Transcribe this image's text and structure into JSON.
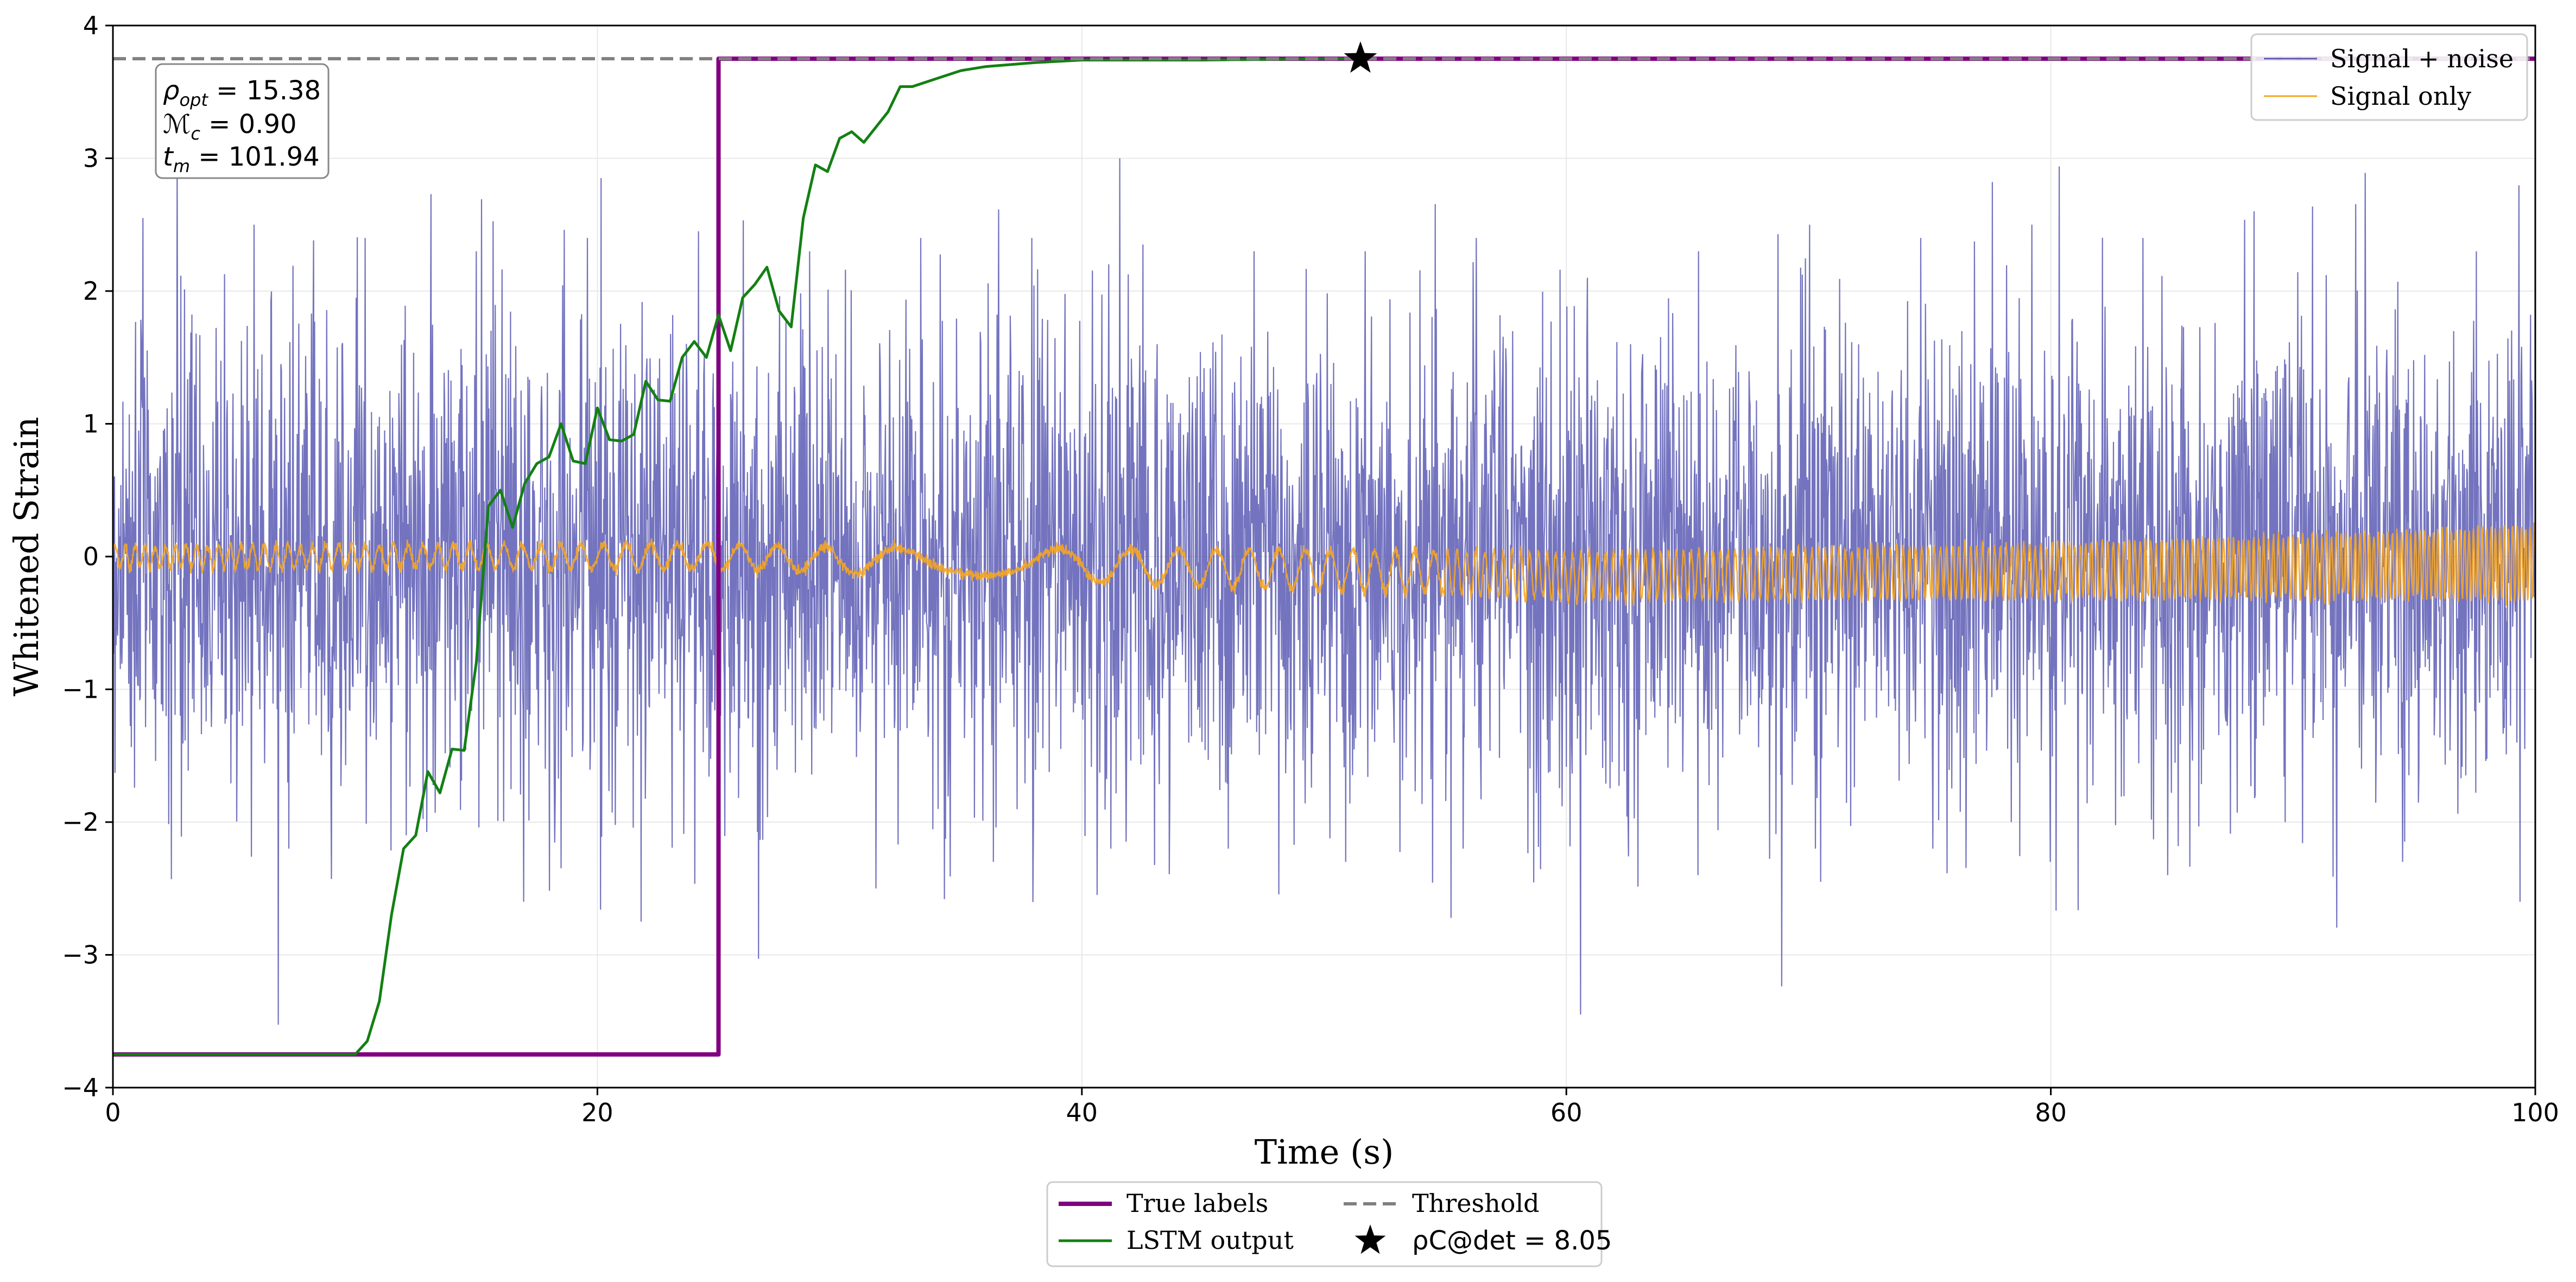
{
  "chart_data": {
    "type": "line",
    "xlabel": "Time (s)",
    "ylabel": "Whitened Strain",
    "xlim": [
      0,
      100
    ],
    "ylim": [
      -4,
      4
    ],
    "x_ticks": [
      "0",
      "20",
      "40",
      "60",
      "80",
      "100"
    ],
    "x_tick_values": [
      0,
      20,
      40,
      60,
      80,
      100
    ],
    "y_ticks": [
      "−4",
      "−3",
      "−2",
      "−1",
      "0",
      "1",
      "2",
      "3",
      "4"
    ],
    "y_tick_values": [
      -4,
      -3,
      -2,
      -1,
      0,
      1,
      2,
      3,
      4
    ],
    "grid": true,
    "threshold": 3.75,
    "series": [
      {
        "name": "Signal + noise",
        "color": "#5a5ab4",
        "style": "noise",
        "x_range": [
          0,
          100
        ],
        "std": 0.9,
        "envelope_start": [
          [
            -2.43,
            2.55
          ],
          [
            -2.2,
            2.5
          ],
          [
            -2.1,
            2.4
          ],
          [
            -2.6,
            2.3
          ],
          [
            -2.75,
            2.4
          ],
          [
            -3.03,
            2.45
          ],
          [
            -2.5,
            2.3
          ],
          [
            -2.3,
            2.4
          ],
          [
            -2.2,
            2.35
          ],
          [
            -2.2,
            2.3
          ],
          [
            -2.3,
            2.3
          ],
          [
            -2.2,
            2.4
          ],
          [
            -3.45,
            2.1
          ],
          [
            -2.4,
            2.3
          ],
          [
            -2.2,
            2.5
          ],
          [
            -2.2,
            2.4
          ],
          [
            -2.3,
            2.5
          ],
          [
            -2.4,
            2.4
          ],
          [
            -2.0,
            2.6
          ],
          [
            -2.3,
            2.89
          ],
          [
            -2.6,
            2.3
          ]
        ]
      },
      {
        "name": "Signal only",
        "color": "#f5a623",
        "style": "chirp",
        "x_range": [
          0,
          100
        ],
        "amplitude": [
          [
            0,
            0.08
          ],
          [
            30,
            0.1
          ],
          [
            50,
            0.15
          ],
          [
            60,
            0.18
          ],
          [
            80,
            0.2
          ],
          [
            95,
            0.25
          ],
          [
            100,
            0.28
          ]
        ],
        "offset": [
          [
            0,
            0.0
          ],
          [
            25,
            0.0
          ],
          [
            35,
            -0.05
          ],
          [
            55,
            -0.12
          ],
          [
            60,
            -0.15
          ],
          [
            75,
            -0.12
          ],
          [
            100,
            -0.05
          ]
        ]
      },
      {
        "name": "True labels",
        "color": "#800080",
        "style": "step",
        "points": [
          [
            0,
            -3.75
          ],
          [
            25,
            -3.75
          ],
          [
            25,
            3.75
          ],
          [
            100,
            3.75
          ]
        ]
      },
      {
        "name": "LSTM output",
        "color": "#138013",
        "style": "line",
        "points": [
          [
            0,
            -3.75
          ],
          [
            10,
            -3.75
          ],
          [
            10.5,
            -3.65
          ],
          [
            11,
            -3.35
          ],
          [
            11.5,
            -2.7
          ],
          [
            12,
            -2.2
          ],
          [
            12.5,
            -2.1
          ],
          [
            13,
            -1.62
          ],
          [
            13.5,
            -1.78
          ],
          [
            14,
            -1.45
          ],
          [
            14.5,
            -1.46
          ],
          [
            15,
            -0.8
          ],
          [
            15.5,
            0.38
          ],
          [
            16,
            0.5
          ],
          [
            16.5,
            0.22
          ],
          [
            17,
            0.55
          ],
          [
            17.5,
            0.7
          ],
          [
            18,
            0.75
          ],
          [
            18.5,
            1.0
          ],
          [
            19,
            0.72
          ],
          [
            19.5,
            0.7
          ],
          [
            20,
            1.12
          ],
          [
            20.5,
            0.88
          ],
          [
            21,
            0.87
          ],
          [
            21.5,
            0.92
          ],
          [
            22,
            1.32
          ],
          [
            22.5,
            1.18
          ],
          [
            23,
            1.17
          ],
          [
            23.5,
            1.5
          ],
          [
            24,
            1.62
          ],
          [
            24.5,
            1.5
          ],
          [
            25,
            1.82
          ],
          [
            25.5,
            1.55
          ],
          [
            26,
            1.95
          ],
          [
            26.5,
            2.05
          ],
          [
            27,
            2.18
          ],
          [
            27.5,
            1.85
          ],
          [
            28,
            1.73
          ],
          [
            28.5,
            2.55
          ],
          [
            29,
            2.95
          ],
          [
            29.5,
            2.9
          ],
          [
            30,
            3.15
          ],
          [
            30.5,
            3.2
          ],
          [
            31,
            3.12
          ],
          [
            32,
            3.35
          ],
          [
            32.5,
            3.54
          ],
          [
            33,
            3.54
          ],
          [
            34,
            3.6
          ],
          [
            35,
            3.66
          ],
          [
            36,
            3.69
          ],
          [
            38,
            3.72
          ],
          [
            40,
            3.74
          ],
          [
            45,
            3.74
          ],
          [
            50,
            3.75
          ],
          [
            51.5,
            3.75
          ]
        ]
      }
    ],
    "marker": {
      "label": "ρC@det = 8.05",
      "x": 51.5,
      "y": 3.75,
      "symbol": "star"
    },
    "legend_top_right": [
      "Signal + noise",
      "Signal only"
    ],
    "legend_bottom": {
      "col1": [
        "True labels",
        "LSTM output"
      ],
      "col2": [
        "Threshold",
        "ρC@det = 8.05"
      ]
    },
    "annotation": [
      "ρopt = 15.38",
      "ℳc = 0.90",
      "tm = 101.94"
    ]
  }
}
